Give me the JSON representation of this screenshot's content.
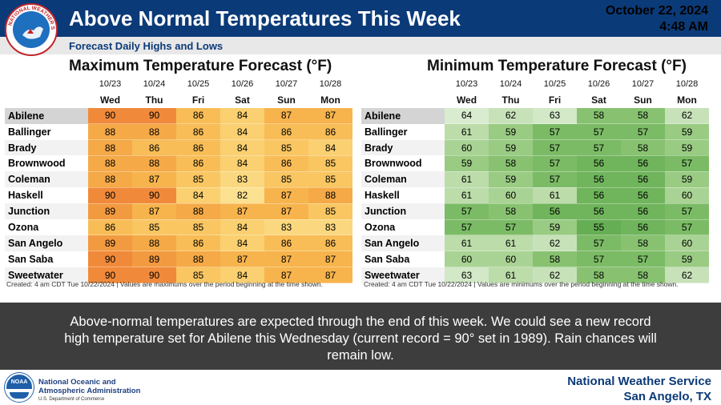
{
  "header": {
    "title": "Above Normal Temperatures This Week",
    "date": "October 22, 2024",
    "time": "4:48 AM",
    "subtitle": "Forecast Daily Highs and Lows"
  },
  "max_panel": {
    "title": "Maximum Temperature Forecast (°F)",
    "dates": [
      "10/23",
      "10/24",
      "10/25",
      "10/26",
      "10/27",
      "10/28"
    ],
    "days": [
      "Wed",
      "Thu",
      "Fri",
      "Sat",
      "Sun",
      "Mon"
    ],
    "rows": [
      {
        "city": "Abilene",
        "values": [
          90,
          90,
          86,
          84,
          87,
          87
        ]
      },
      {
        "city": "Ballinger",
        "values": [
          88,
          88,
          86,
          84,
          86,
          86
        ]
      },
      {
        "city": "Brady",
        "values": [
          88,
          86,
          86,
          84,
          85,
          84
        ]
      },
      {
        "city": "Brownwood",
        "values": [
          88,
          88,
          86,
          84,
          86,
          85
        ]
      },
      {
        "city": "Coleman",
        "values": [
          88,
          87,
          85,
          83,
          85,
          85
        ]
      },
      {
        "city": "Haskell",
        "values": [
          90,
          90,
          84,
          82,
          87,
          88
        ]
      },
      {
        "city": "Junction",
        "values": [
          89,
          87,
          88,
          87,
          87,
          85
        ]
      },
      {
        "city": "Ozona",
        "values": [
          86,
          85,
          85,
          84,
          83,
          83
        ]
      },
      {
        "city": "San Angelo",
        "values": [
          89,
          88,
          86,
          84,
          86,
          86
        ]
      },
      {
        "city": "San Saba",
        "values": [
          90,
          89,
          88,
          87,
          87,
          87
        ]
      },
      {
        "city": "Sweetwater",
        "values": [
          90,
          90,
          85,
          84,
          87,
          87
        ]
      }
    ],
    "footnote": "Created: 4 am CDT Tue 10/22/2024  |  Values are maximums over the period beginning at the time shown."
  },
  "min_panel": {
    "title": "Minimum Temperature Forecast (°F)",
    "dates": [
      "10/23",
      "10/24",
      "10/25",
      "10/26",
      "10/27",
      "10/28"
    ],
    "days": [
      "Wed",
      "Thu",
      "Fri",
      "Sat",
      "Sun",
      "Mon"
    ],
    "rows": [
      {
        "city": "Abilene",
        "values": [
          64,
          62,
          63,
          58,
          58,
          62
        ]
      },
      {
        "city": "Ballinger",
        "values": [
          61,
          59,
          57,
          57,
          57,
          59
        ]
      },
      {
        "city": "Brady",
        "values": [
          60,
          59,
          57,
          57,
          58,
          59
        ]
      },
      {
        "city": "Brownwood",
        "values": [
          59,
          58,
          57,
          56,
          56,
          57
        ]
      },
      {
        "city": "Coleman",
        "values": [
          61,
          59,
          57,
          56,
          56,
          59
        ]
      },
      {
        "city": "Haskell",
        "values": [
          61,
          60,
          61,
          56,
          56,
          60
        ]
      },
      {
        "city": "Junction",
        "values": [
          57,
          58,
          56,
          56,
          56,
          57
        ]
      },
      {
        "city": "Ozona",
        "values": [
          57,
          57,
          59,
          55,
          56,
          57
        ]
      },
      {
        "city": "San Angelo",
        "values": [
          61,
          61,
          62,
          57,
          58,
          60
        ]
      },
      {
        "city": "San Saba",
        "values": [
          60,
          60,
          58,
          57,
          57,
          59
        ]
      },
      {
        "city": "Sweetwater",
        "values": [
          63,
          61,
          62,
          58,
          58,
          62
        ]
      }
    ],
    "footnote": "Created: 4 am CDT Tue 10/22/2024  |  Values are minimums over the period beginning at the time shown."
  },
  "message": "Above-normal temperatures are expected through the end of this week. We could see a new record high temperature set for Abilene this Wednesday (current record = 90° set in 1989). Rain chances will remain low.",
  "footer": {
    "agency_line1": "National Oceanic and",
    "agency_line2": "Atmospheric Administration",
    "agency_line3": "U.S. Department of Commerce",
    "office_line1": "National Weather Service",
    "office_line2": "San Angelo, TX"
  },
  "logos": {
    "nws_seal_text": "NATIONAL WEATHER SERVICE",
    "noaa_text": "NOAA"
  },
  "colors": {
    "header": "#0b3a78",
    "max_colors": {
      "90": "#f08a3a",
      "89": "#f29a40",
      "88": "#f5a947",
      "87": "#f7b44d",
      "86": "#f8bd56",
      "85": "#f9c662",
      "84": "#fad070",
      "83": "#fbd87f",
      "82": "#fce190"
    },
    "min_colors": {
      "64": "#d9ecd0",
      "63": "#d2e8c7",
      "62": "#c7e2b9",
      "61": "#bcdcaa",
      "60": "#a9d394",
      "59": "#99cb83",
      "58": "#88c271",
      "57": "#7cbb66",
      "56": "#70b45c",
      "55": "#66ae54"
    }
  }
}
